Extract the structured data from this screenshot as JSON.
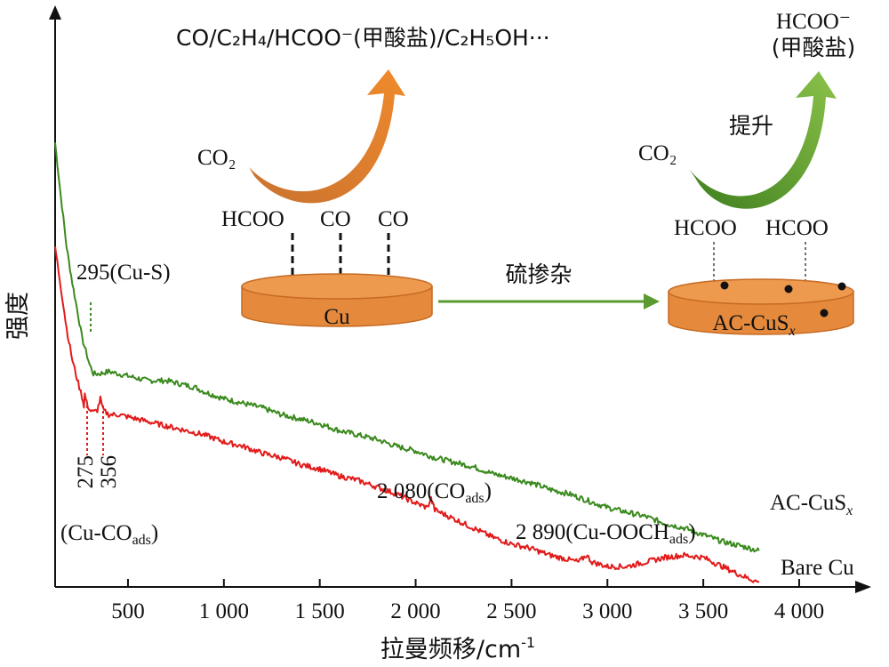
{
  "chart_data": {
    "type": "line",
    "xlabel": "拉曼频移/cm",
    "xlabel_sup": "-1",
    "ylabel": "强度",
    "xlim": [
      120,
      4320
    ],
    "x_ticks": [
      500,
      1000,
      1500,
      2000,
      2500,
      3000,
      3500,
      4000
    ],
    "x_tick_labels": [
      "500",
      "1 000",
      "1 500",
      "2 000",
      "2 500",
      "3 000",
      "3 500",
      "4 000"
    ],
    "series": [
      {
        "name": "AC-CuS",
        "name_sub": "x",
        "color": "#3a8a1e",
        "points": [
          [
            120,
            0.98
          ],
          [
            150,
            0.86
          ],
          [
            180,
            0.75
          ],
          [
            210,
            0.67
          ],
          [
            240,
            0.6
          ],
          [
            260,
            0.55
          ],
          [
            280,
            0.52
          ],
          [
            300,
            0.49
          ],
          [
            320,
            0.47
          ],
          [
            350,
            0.47
          ],
          [
            400,
            0.475
          ],
          [
            450,
            0.47
          ],
          [
            500,
            0.465
          ],
          [
            550,
            0.46
          ],
          [
            600,
            0.455
          ],
          [
            650,
            0.455
          ],
          [
            700,
            0.455
          ],
          [
            750,
            0.45
          ],
          [
            800,
            0.445
          ],
          [
            850,
            0.44
          ],
          [
            900,
            0.43
          ],
          [
            1000,
            0.415
          ],
          [
            1100,
            0.405
          ],
          [
            1200,
            0.395
          ],
          [
            1300,
            0.38
          ],
          [
            1400,
            0.37
          ],
          [
            1500,
            0.36
          ],
          [
            1600,
            0.345
          ],
          [
            1700,
            0.335
          ],
          [
            1800,
            0.325
          ],
          [
            1900,
            0.31
          ],
          [
            2000,
            0.3
          ],
          [
            2100,
            0.285
          ],
          [
            2200,
            0.275
          ],
          [
            2300,
            0.265
          ],
          [
            2400,
            0.25
          ],
          [
            2500,
            0.24
          ],
          [
            2600,
            0.23
          ],
          [
            2700,
            0.215
          ],
          [
            2800,
            0.205
          ],
          [
            2900,
            0.19
          ],
          [
            3000,
            0.175
          ],
          [
            3100,
            0.165
          ],
          [
            3200,
            0.155
          ],
          [
            3300,
            0.14
          ],
          [
            3400,
            0.13
          ],
          [
            3500,
            0.115
          ],
          [
            3600,
            0.1
          ],
          [
            3700,
            0.09
          ],
          [
            3790,
            0.08
          ]
        ]
      },
      {
        "name": "Bare Cu",
        "color": "#e21b1b",
        "points": [
          [
            120,
            0.75
          ],
          [
            150,
            0.66
          ],
          [
            180,
            0.57
          ],
          [
            210,
            0.5
          ],
          [
            240,
            0.45
          ],
          [
            260,
            0.42
          ],
          [
            270,
            0.4
          ],
          [
            275,
            0.425
          ],
          [
            285,
            0.405
          ],
          [
            300,
            0.39
          ],
          [
            320,
            0.385
          ],
          [
            340,
            0.39
          ],
          [
            356,
            0.415
          ],
          [
            370,
            0.39
          ],
          [
            400,
            0.38
          ],
          [
            450,
            0.38
          ],
          [
            500,
            0.375
          ],
          [
            550,
            0.37
          ],
          [
            600,
            0.365
          ],
          [
            650,
            0.36
          ],
          [
            700,
            0.355
          ],
          [
            800,
            0.345
          ],
          [
            900,
            0.335
          ],
          [
            1000,
            0.32
          ],
          [
            1100,
            0.31
          ],
          [
            1200,
            0.295
          ],
          [
            1300,
            0.285
          ],
          [
            1400,
            0.27
          ],
          [
            1500,
            0.26
          ],
          [
            1600,
            0.245
          ],
          [
            1700,
            0.235
          ],
          [
            1800,
            0.22
          ],
          [
            1900,
            0.205
          ],
          [
            2000,
            0.185
          ],
          [
            2060,
            0.175
          ],
          [
            2080,
            0.195
          ],
          [
            2100,
            0.17
          ],
          [
            2200,
            0.15
          ],
          [
            2300,
            0.13
          ],
          [
            2400,
            0.11
          ],
          [
            2500,
            0.095
          ],
          [
            2600,
            0.085
          ],
          [
            2700,
            0.07
          ],
          [
            2800,
            0.06
          ],
          [
            2850,
            0.055
          ],
          [
            2890,
            0.07
          ],
          [
            2920,
            0.055
          ],
          [
            3000,
            0.045
          ],
          [
            3100,
            0.045
          ],
          [
            3200,
            0.055
          ],
          [
            3300,
            0.065
          ],
          [
            3400,
            0.07
          ],
          [
            3500,
            0.065
          ],
          [
            3600,
            0.045
          ],
          [
            3700,
            0.025
          ],
          [
            3790,
            0.01
          ]
        ]
      }
    ],
    "peak_labels": [
      {
        "text": "295(Cu-S)",
        "x": 295,
        "series": 0,
        "color": "#3a8a1e"
      },
      {
        "text": "275",
        "x": 275,
        "series": 1,
        "color": "#e21b1b"
      },
      {
        "text": "356",
        "x": 356,
        "series": 1,
        "color": "#e21b1b"
      },
      {
        "text": "(Cu-CO",
        "sub": "ads",
        "after": ")"
      },
      {
        "text": "2 080(CO",
        "sub": "ads",
        "after": ")"
      },
      {
        "text": "2 890(Cu-OOCH",
        "sub": "ads",
        "after": ")"
      }
    ]
  },
  "schematic": {
    "left": {
      "products": "CO/C₂H₄/HCOO⁻(甲酸盐)/C₂H₅OH···",
      "reactant": "CO₂",
      "adsorbates": [
        "HCOO",
        "CO",
        "CO"
      ],
      "disk_label": "Cu",
      "arrow_color": "#e07a2e",
      "disk_color": "#e58a3c"
    },
    "process": "硫掺杂",
    "process_arrow_color": "#5a9a2e",
    "right": {
      "product_line1": "HCOO⁻",
      "product_line2": "(甲酸盐)",
      "reactant": "CO₂",
      "boost": "提升",
      "adsorbates": [
        "HCOO",
        "HCOO"
      ],
      "disk_label": "AC-CuS",
      "disk_label_sub": "x",
      "arrow_color": "#6aa832",
      "disk_color": "#e58a3c"
    }
  }
}
